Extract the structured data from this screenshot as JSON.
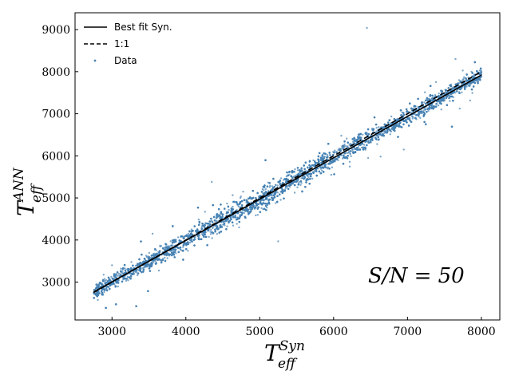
{
  "chart_data": {
    "type": "scatter",
    "xlim": [
      2500,
      8250
    ],
    "ylim": [
      2100,
      9400
    ],
    "x_ticks": [
      3000,
      4000,
      5000,
      6000,
      7000,
      8000
    ],
    "y_ticks": [
      3000,
      4000,
      5000,
      6000,
      7000,
      8000,
      9000
    ],
    "x_tick_labels": [
      "3000",
      "4000",
      "5000",
      "6000",
      "7000",
      "8000"
    ],
    "y_tick_labels": [
      "3000",
      "4000",
      "5000",
      "6000",
      "7000",
      "8000",
      "9000"
    ],
    "xlabel": {
      "base": "T",
      "sub": "eff",
      "sup": "Syn"
    },
    "ylabel": {
      "base": "T",
      "sub": "eff",
      "sup": "ANN"
    },
    "annotation": "S/N = 50",
    "legend": {
      "placement": "top-left",
      "entries": [
        "Best fit Syn.",
        "1:1",
        "Data"
      ]
    },
    "series": [
      {
        "name": "Best fit Syn.",
        "style": "solid",
        "color": "#000000",
        "x": [
          2750,
          8000
        ],
        "y": [
          2760,
          7920
        ]
      },
      {
        "name": "1:1",
        "style": "dashed",
        "color": "#000000",
        "x": [
          2750,
          8000
        ],
        "y": [
          2750,
          8000
        ]
      },
      {
        "name": "Data",
        "style": "points",
        "color": "#4682b4",
        "x_range": [
          2750,
          8000
        ],
        "y_approx": "close to 1:1, scatter ~150 K",
        "n_points_approx": 9000,
        "notable_outliers": [
          {
            "x": 6450,
            "y": 9040
          },
          {
            "x": 7650,
            "y": 8300
          },
          {
            "x": 3000,
            "y": 3400
          },
          {
            "x": 3550,
            "y": 4150
          },
          {
            "x": 4350,
            "y": 5380
          },
          {
            "x": 5250,
            "y": 3970
          }
        ]
      }
    ]
  }
}
